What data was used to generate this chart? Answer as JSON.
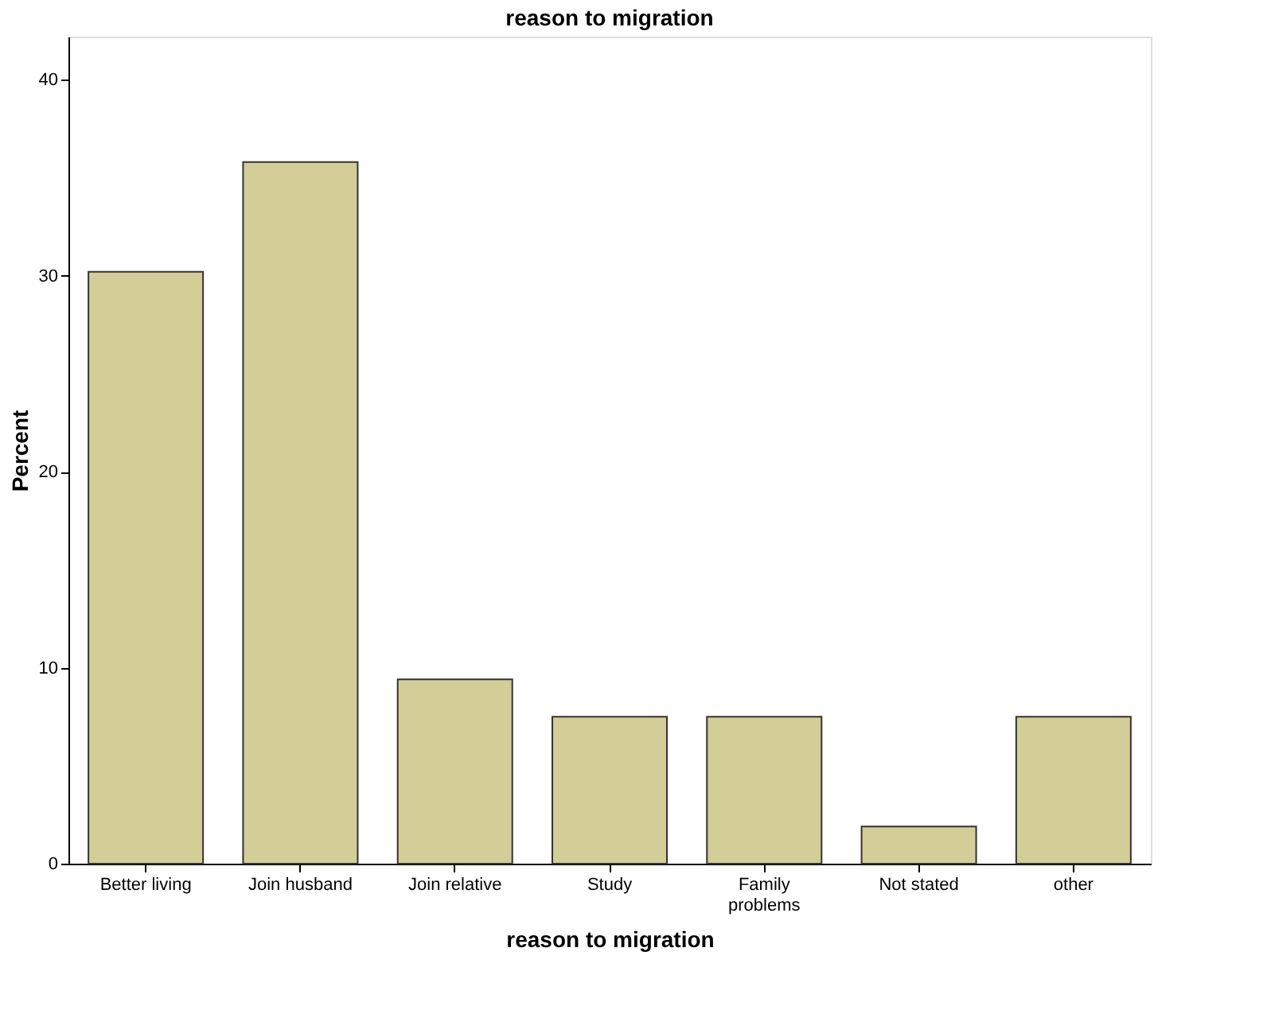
{
  "chart_data": {
    "type": "bar",
    "title": "reason to migration",
    "xlabel": "reason to migration",
    "ylabel": "Percent",
    "categories": [
      "Better living",
      "Join husband",
      "Join relative",
      "Study",
      "Family problems",
      "Not stated",
      "other"
    ],
    "values": [
      30.2,
      35.8,
      9.4,
      7.5,
      7.5,
      1.9,
      7.5
    ],
    "color": "#d3ce97",
    "ylim": [
      0,
      42.2
    ],
    "yticks": [
      0,
      10,
      20,
      30,
      40
    ],
    "grid": false
  }
}
